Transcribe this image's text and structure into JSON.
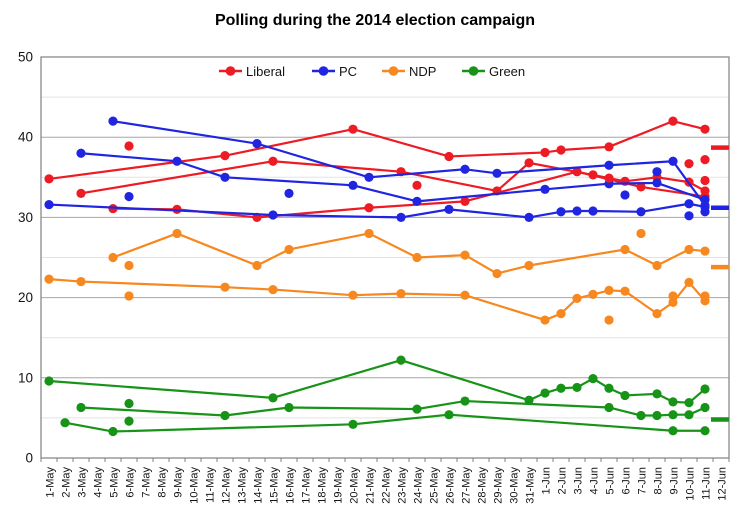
{
  "title": "Polling during the 2014 election campaign",
  "chart_data": {
    "type": "line",
    "title": "Polling during the 2014 election campaign",
    "xlabel": "",
    "ylabel": "",
    "ylim": [
      0,
      50
    ],
    "y_tick_labels": [
      "0",
      "10",
      "20",
      "30",
      "40",
      "50"
    ],
    "y_major_gridlines": [
      10,
      20,
      30,
      40
    ],
    "y_minor_gridlines": [
      5,
      15,
      25,
      35,
      45
    ],
    "grid": "horizontal",
    "legend_position": "top-center",
    "x_categories": [
      "1-May",
      "2-May",
      "3-May",
      "4-May",
      "5-May",
      "6-May",
      "7-May",
      "8-May",
      "9-May",
      "10-May",
      "11-May",
      "12-May",
      "13-May",
      "14-May",
      "15-May",
      "16-May",
      "17-May",
      "18-May",
      "19-May",
      "20-May",
      "21-May",
      "22-May",
      "23-May",
      "24-May",
      "25-May",
      "26-May",
      "27-May",
      "28-May",
      "29-May",
      "30-May",
      "31-May",
      "1-Jun",
      "2-Jun",
      "3-Jun",
      "4-Jun",
      "5-Jun",
      "6-Jun",
      "7-Jun",
      "8-Jun",
      "9-Jun",
      "10-Jun",
      "11-Jun",
      "12-Jun"
    ],
    "legend": [
      {
        "label": "Liberal",
        "color": "#ed1b24"
      },
      {
        "label": "PC",
        "color": "#1f25e0"
      },
      {
        "label": "NDP",
        "color": "#f6881f"
      },
      {
        "label": "Green",
        "color": "#179317"
      }
    ],
    "series": [
      {
        "party": "Liberal",
        "pollster_track": 1,
        "color": "#ed1b24",
        "points": [
          [
            "1-May",
            34.8
          ],
          [
            "12-May",
            37.7
          ],
          [
            "20-May",
            41.0
          ],
          [
            "26-May",
            37.6
          ],
          [
            "1-Jun",
            38.1
          ],
          [
            "2-Jun",
            38.4
          ],
          [
            "5-Jun",
            38.8
          ],
          [
            "9-Jun",
            42.0
          ],
          [
            "11-Jun",
            41.0
          ]
        ]
      },
      {
        "party": "Liberal",
        "pollster_track": 2,
        "color": "#ed1b24",
        "points": [
          [
            "5-May",
            31.1
          ],
          [
            "9-May",
            31.0
          ],
          [
            "14-May",
            30.0
          ],
          [
            "21-May",
            31.2
          ],
          [
            "27-May",
            32.0
          ],
          [
            "3-Jun",
            35.7
          ],
          [
            "7-Jun",
            33.8
          ],
          [
            "11-Jun",
            32.6
          ]
        ]
      },
      {
        "party": "Liberal",
        "pollster_track": 3,
        "color": "#ed1b24",
        "points": [
          [
            "3-May",
            33.0
          ],
          [
            "15-May",
            37.0
          ],
          [
            "23-May",
            35.7
          ],
          [
            "29-May",
            33.3
          ],
          [
            "31-May",
            36.8
          ],
          [
            "4-Jun",
            35.3
          ],
          [
            "6-Jun",
            34.5
          ],
          [
            "8-Jun",
            35.0
          ],
          [
            "10-Jun",
            34.4
          ],
          [
            "11-Jun",
            33.3
          ]
        ]
      },
      {
        "party": "PC",
        "pollster_track": 1,
        "color": "#1f25e0",
        "points": [
          [
            "1-May",
            31.6
          ],
          [
            "15-May",
            30.3
          ],
          [
            "23-May",
            30.0
          ],
          [
            "26-May",
            31.0
          ],
          [
            "31-May",
            30.0
          ],
          [
            "2-Jun",
            30.7
          ],
          [
            "3-Jun",
            30.8
          ],
          [
            "4-Jun",
            30.8
          ],
          [
            "7-Jun",
            30.7
          ],
          [
            "10-Jun",
            31.7
          ],
          [
            "11-Jun",
            31.3
          ]
        ]
      },
      {
        "party": "PC",
        "pollster_track": 2,
        "color": "#1f25e0",
        "points": [
          [
            "3-May",
            38.0
          ],
          [
            "9-May",
            37.0
          ],
          [
            "12-May",
            35.0
          ],
          [
            "20-May",
            34.0
          ],
          [
            "24-May",
            32.0
          ],
          [
            "1-Jun",
            33.5
          ],
          [
            "5-Jun",
            34.2
          ],
          [
            "8-Jun",
            34.3
          ],
          [
            "11-Jun",
            32.2
          ]
        ]
      },
      {
        "party": "PC",
        "pollster_track": 3,
        "color": "#1f25e0",
        "points": [
          [
            "5-May",
            42.0
          ],
          [
            "14-May",
            39.2
          ],
          [
            "21-May",
            35.0
          ],
          [
            "27-May",
            36.0
          ],
          [
            "29-May",
            35.5
          ],
          [
            "5-Jun",
            36.5
          ],
          [
            "9-Jun",
            37.0
          ],
          [
            "11-Jun",
            31.5
          ]
        ]
      },
      {
        "party": "NDP",
        "pollster_track": 1,
        "color": "#f6881f",
        "points": [
          [
            "1-May",
            22.3
          ],
          [
            "3-May",
            22.0
          ],
          [
            "12-May",
            21.3
          ],
          [
            "15-May",
            21.0
          ],
          [
            "20-May",
            20.3
          ],
          [
            "23-May",
            20.5
          ],
          [
            "27-May",
            20.3
          ],
          [
            "1-Jun",
            17.2
          ],
          [
            "2-Jun",
            18.0
          ],
          [
            "3-Jun",
            19.9
          ],
          [
            "4-Jun",
            20.4
          ],
          [
            "5-Jun",
            20.9
          ],
          [
            "6-Jun",
            20.8
          ],
          [
            "8-Jun",
            18.0
          ],
          [
            "9-Jun",
            19.4
          ],
          [
            "10-Jun",
            21.9
          ],
          [
            "11-Jun",
            19.6
          ]
        ]
      },
      {
        "party": "NDP",
        "pollster_track": 2,
        "color": "#f6881f",
        "points": [
          [
            "5-May",
            25.0
          ],
          [
            "9-May",
            28.0
          ],
          [
            "14-May",
            24.0
          ],
          [
            "16-May",
            26.0
          ],
          [
            "21-May",
            28.0
          ],
          [
            "24-May",
            25.0
          ],
          [
            "27-May",
            25.3
          ],
          [
            "29-May",
            23.0
          ],
          [
            "31-May",
            24.0
          ],
          [
            "6-Jun",
            26.0
          ],
          [
            "8-Jun",
            24.0
          ],
          [
            "10-Jun",
            26.0
          ],
          [
            "11-Jun",
            25.8
          ]
        ]
      },
      {
        "party": "Green",
        "pollster_track": 1,
        "color": "#179317",
        "points": [
          [
            "1-May",
            9.6
          ],
          [
            "15-May",
            7.5
          ],
          [
            "23-May",
            12.2
          ],
          [
            "31-May",
            7.2
          ],
          [
            "1-Jun",
            8.1
          ],
          [
            "2-Jun",
            8.7
          ],
          [
            "3-Jun",
            8.8
          ],
          [
            "4-Jun",
            9.9
          ],
          [
            "5-Jun",
            8.7
          ],
          [
            "6-Jun",
            7.8
          ],
          [
            "8-Jun",
            8.0
          ],
          [
            "9-Jun",
            7.0
          ],
          [
            "10-Jun",
            6.9
          ],
          [
            "11-Jun",
            8.6
          ]
        ]
      },
      {
        "party": "Green",
        "pollster_track": 2,
        "color": "#179317",
        "points": [
          [
            "3-May",
            6.3
          ],
          [
            "12-May",
            5.3
          ],
          [
            "16-May",
            6.3
          ],
          [
            "24-May",
            6.1
          ],
          [
            "27-May",
            7.1
          ],
          [
            "5-Jun",
            6.3
          ],
          [
            "7-Jun",
            5.3
          ],
          [
            "8-Jun",
            5.3
          ],
          [
            "9-Jun",
            5.4
          ],
          [
            "10-Jun",
            5.4
          ],
          [
            "11-Jun",
            6.3
          ]
        ]
      },
      {
        "party": "Green",
        "pollster_track": 3,
        "color": "#179317",
        "points": [
          [
            "2-May",
            4.4
          ],
          [
            "5-May",
            3.3
          ],
          [
            "20-May",
            4.2
          ],
          [
            "26-May",
            5.4
          ],
          [
            "9-Jun",
            3.4
          ],
          [
            "11-Jun",
            3.4
          ]
        ]
      }
    ],
    "extra_points": [
      {
        "party": "Liberal",
        "color": "#ed1b24",
        "date": "6-May",
        "value": 38.9
      },
      {
        "party": "Liberal",
        "color": "#ed1b24",
        "date": "24-May",
        "value": 34.0
      },
      {
        "party": "Liberal",
        "color": "#ed1b24",
        "date": "5-Jun",
        "value": 34.9
      },
      {
        "party": "Liberal",
        "color": "#ed1b24",
        "date": "10-Jun",
        "value": 36.7
      },
      {
        "party": "Liberal",
        "color": "#ed1b24",
        "date": "11-Jun",
        "value": 37.2
      },
      {
        "party": "Liberal",
        "color": "#ed1b24",
        "date": "11-Jun",
        "value": 34.6
      },
      {
        "party": "PC",
        "color": "#1f25e0",
        "date": "6-May",
        "value": 32.6
      },
      {
        "party": "PC",
        "color": "#1f25e0",
        "date": "16-May",
        "value": 33.0
      },
      {
        "party": "PC",
        "color": "#1f25e0",
        "date": "6-Jun",
        "value": 32.8
      },
      {
        "party": "PC",
        "color": "#1f25e0",
        "date": "8-Jun",
        "value": 35.7
      },
      {
        "party": "PC",
        "color": "#1f25e0",
        "date": "10-Jun",
        "value": 30.2
      },
      {
        "party": "PC",
        "color": "#1f25e0",
        "date": "11-Jun",
        "value": 30.7
      },
      {
        "party": "NDP",
        "color": "#f6881f",
        "date": "6-May",
        "value": 24.0
      },
      {
        "party": "NDP",
        "color": "#f6881f",
        "date": "6-May",
        "value": 20.2
      },
      {
        "party": "NDP",
        "color": "#f6881f",
        "date": "5-Jun",
        "value": 17.2
      },
      {
        "party": "NDP",
        "color": "#f6881f",
        "date": "7-Jun",
        "value": 28.0
      },
      {
        "party": "NDP",
        "color": "#f6881f",
        "date": "9-Jun",
        "value": 20.2
      },
      {
        "party": "NDP",
        "color": "#f6881f",
        "date": "11-Jun",
        "value": 20.2
      },
      {
        "party": "Green",
        "color": "#179317",
        "date": "6-May",
        "value": 6.8
      },
      {
        "party": "Green",
        "color": "#179317",
        "date": "6-May",
        "value": 4.6
      }
    ],
    "election_result_markers": [
      {
        "party": "Liberal",
        "color": "#ed1b24",
        "value": 38.7
      },
      {
        "party": "PC",
        "color": "#1f25e0",
        "value": 31.2
      },
      {
        "party": "NDP",
        "color": "#f6881f",
        "value": 23.8
      },
      {
        "party": "Green",
        "color": "#179317",
        "value": 4.8
      }
    ]
  }
}
